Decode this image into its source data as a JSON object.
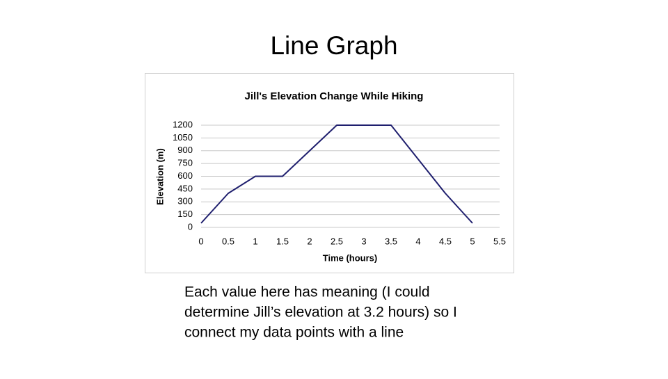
{
  "title": "Line Graph",
  "chart_data": {
    "type": "line",
    "title": "Jill's Elevation Change While Hiking",
    "x_label": "Time (hours)",
    "y_label": "Elevation (m)",
    "x": [
      0,
      0.5,
      1,
      1.5,
      2,
      2.5,
      3,
      3.5,
      4,
      4.5,
      5
    ],
    "series": [
      {
        "name": "Elevation",
        "color": "#1f1f6e",
        "values": [
          50,
          400,
          600,
          600,
          900,
          1200,
          1200,
          1200,
          800,
          400,
          50
        ]
      }
    ],
    "xlim": [
      0,
      5.5
    ],
    "xticks": [
      0,
      0.5,
      1,
      1.5,
      2,
      2.5,
      3,
      3.5,
      4,
      4.5,
      5,
      5.5
    ],
    "ylim": [
      0,
      1200
    ],
    "yticks": [
      0,
      150,
      300,
      450,
      600,
      750,
      900,
      1050,
      1200
    ],
    "grid": true,
    "legend": false
  },
  "caption": [
    "Each value here has meaning (I could",
    "determine Jill’s elevation at 3.2 hours) so I",
    "connect my data points with a line"
  ]
}
